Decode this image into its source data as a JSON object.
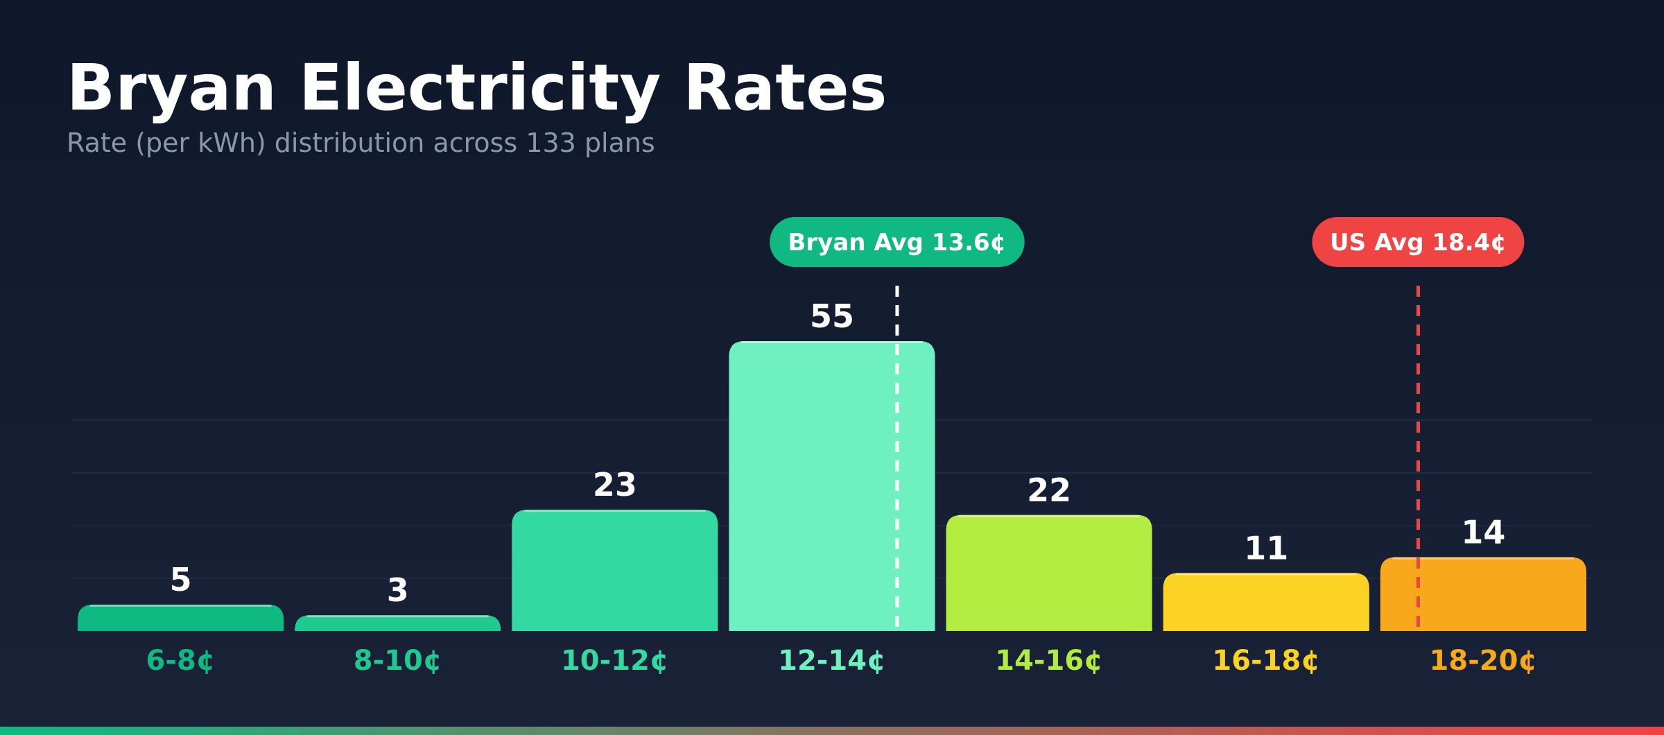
{
  "header": {
    "title": "Bryan Electricity Rates",
    "subtitle": "Rate (per kWh) distribution across 133 plans"
  },
  "colors": {
    "background_top": "#0f172a",
    "background_bottom": "#1a2238",
    "grid": "#1f2a40",
    "value_label": "#ffffff",
    "bryan_avg": "#10b981",
    "us_avg": "#ef4444",
    "bottom_bar_start": "#10b981",
    "bottom_bar_end": "#ef4444"
  },
  "chart_data": {
    "type": "bar",
    "title": "",
    "xlabel": "",
    "ylabel": "",
    "categories": [
      "6-8¢",
      "8-10¢",
      "10-12¢",
      "12-14¢",
      "14-16¢",
      "16-18¢",
      "18-20¢"
    ],
    "values": [
      5,
      3,
      23,
      55,
      22,
      11,
      14
    ],
    "bar_colors": [
      "#10b981",
      "#1fc98f",
      "#34d9a2",
      "#6ef0c1",
      "#b3ec41",
      "#fcd223",
      "#f8a81b"
    ],
    "label_colors": [
      "#10b981",
      "#1fc98f",
      "#34d9a2",
      "#6ef0c1",
      "#b3ec41",
      "#fcd223",
      "#f8a81b"
    ],
    "ylim": [
      0,
      60
    ],
    "grid": true,
    "x_range": [
      6,
      20
    ],
    "reference_lines": [
      {
        "label": "Bryan Avg 13.6¢",
        "value": 13.6,
        "color": "#10b981",
        "line_color": "#ffffff"
      },
      {
        "label": "US Avg 18.4¢",
        "value": 18.4,
        "color": "#ef4444",
        "line_color": "#ef4444"
      }
    ]
  }
}
